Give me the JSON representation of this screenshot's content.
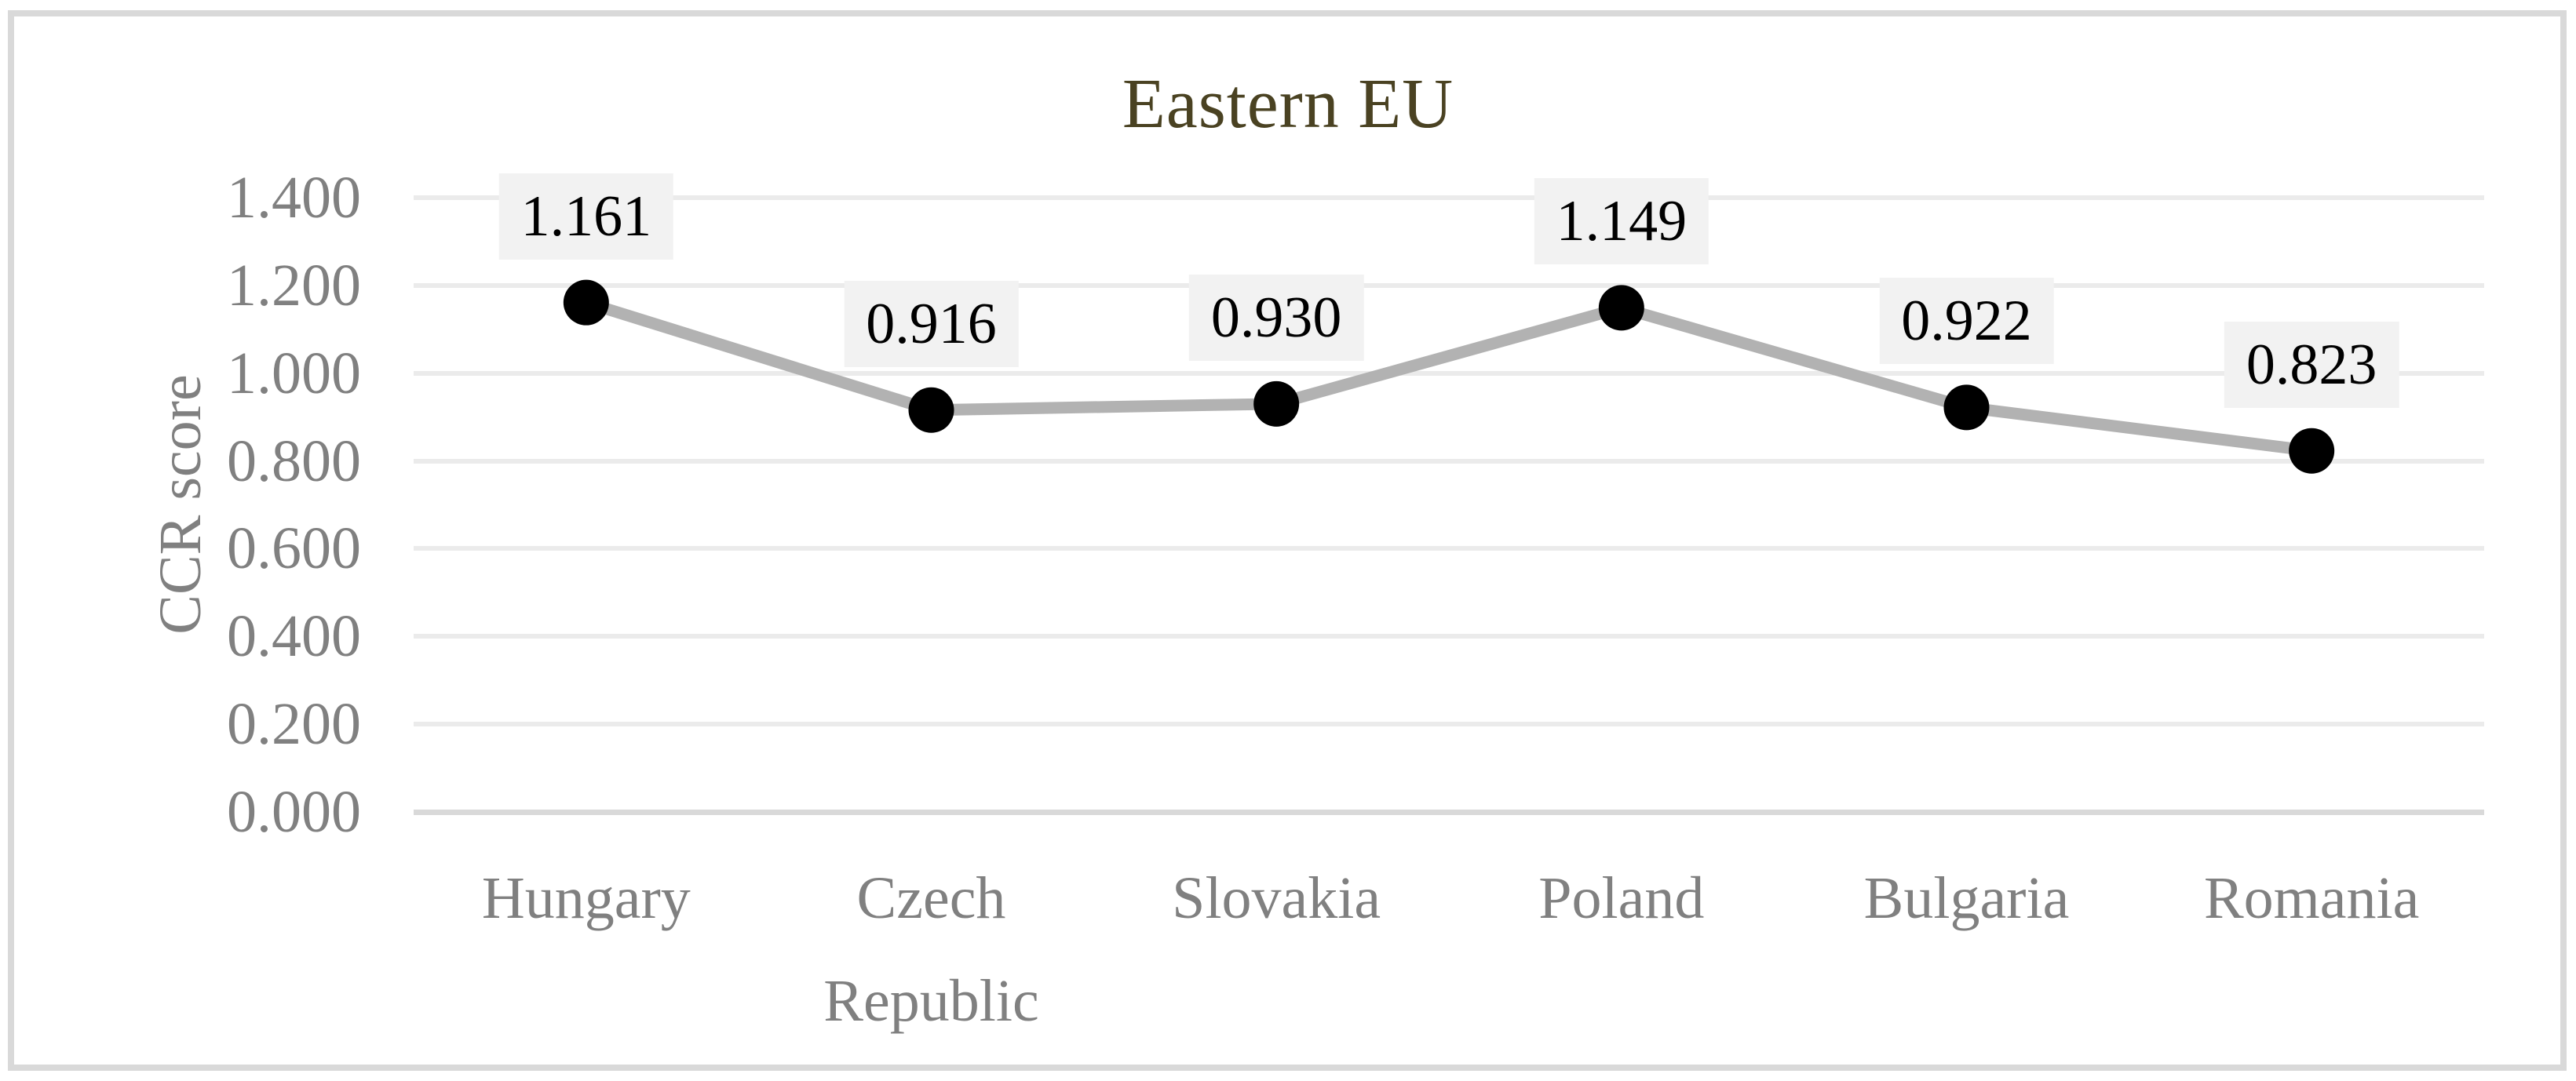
{
  "chart_data": {
    "type": "line",
    "title": "Eastern EU",
    "ylabel": "CCR score",
    "xlabel": "",
    "categories": [
      "Hungary",
      "Czech Republic",
      "Slovakia",
      "Poland",
      "Bulgaria",
      "Romania"
    ],
    "series": [
      {
        "name": "CCR score",
        "values": [
          1.161,
          0.916,
          0.93,
          1.149,
          0.922,
          0.823
        ]
      }
    ],
    "data_labels": [
      "1.161",
      "0.916",
      "0.930",
      "1.149",
      "0.922",
      "0.823"
    ],
    "y_ticks": [
      {
        "label": "1.400",
        "value": 1.4
      },
      {
        "label": "1.200",
        "value": 1.2
      },
      {
        "label": "1.000",
        "value": 1.0
      },
      {
        "label": "0.800",
        "value": 0.8
      },
      {
        "label": "0.600",
        "value": 0.6
      },
      {
        "label": "0.400",
        "value": 0.4
      },
      {
        "label": "0.200",
        "value": 0.2
      },
      {
        "label": "0.000",
        "value": 0.0
      }
    ],
    "ylim": [
      0,
      1.4
    ],
    "grid": true,
    "legend_position": "none",
    "marker_style": "filled-circle",
    "colors": {
      "title_text": "#4a4222",
      "axis_text": "#808080",
      "line": "#b2b2b2",
      "marker": "#000000",
      "gridline": "#ebebeb",
      "axis_line": "#d9d9d9",
      "data_label_bg": "#f2f2f2",
      "data_label_text": "#000000",
      "chart_border": "#d9d9d9",
      "background": "#ffffff"
    }
  }
}
